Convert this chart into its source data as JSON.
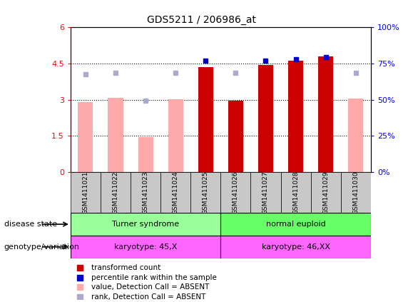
{
  "title": "GDS5211 / 206986_at",
  "samples": [
    "GSM1411021",
    "GSM1411022",
    "GSM1411023",
    "GSM1411024",
    "GSM1411025",
    "GSM1411026",
    "GSM1411027",
    "GSM1411028",
    "GSM1411029",
    "GSM1411030"
  ],
  "transformed_count": [
    null,
    null,
    null,
    null,
    4.35,
    2.95,
    4.45,
    4.6,
    4.8,
    null
  ],
  "percentile_rank": [
    null,
    null,
    null,
    null,
    4.6,
    null,
    4.6,
    4.67,
    4.77,
    null
  ],
  "value_absent": [
    2.9,
    3.08,
    1.45,
    3.02,
    null,
    null,
    null,
    null,
    null,
    3.05
  ],
  "rank_absent": [
    4.05,
    4.12,
    2.97,
    4.1,
    null,
    4.1,
    null,
    null,
    null,
    4.1
  ],
  "ylim_left": [
    0,
    6
  ],
  "yticks_left": [
    0,
    1.5,
    3.0,
    4.5,
    6.0
  ],
  "ytick_labels_left": [
    "0",
    "1.5",
    "3",
    "4.5",
    "6"
  ],
  "ytick_labels_right": [
    "0%",
    "25%",
    "50%",
    "75%",
    "100%"
  ],
  "yticks_right": [
    0,
    25,
    50,
    75,
    100
  ],
  "group1_label_disease": "Turner syndrome",
  "group2_label_disease": "normal euploid",
  "group1_label_geno": "karyotype: 45,X",
  "group2_label_geno": "karyotype: 46,XX",
  "disease_label": "disease state",
  "geno_label": "genotype/variation",
  "color_bar_present": "#cc0000",
  "color_bar_absent": "#ffaaaa",
  "color_dot_present": "#0000cc",
  "color_dot_absent": "#aaaacc",
  "color_group1_disease": "#99ff99",
  "color_group2_disease": "#66ff66",
  "color_group_geno": "#ff66ff",
  "bg_label": "#c8c8c8",
  "legend_items": [
    {
      "label": "transformed count",
      "color": "#cc0000"
    },
    {
      "label": "percentile rank within the sample",
      "color": "#0000cc"
    },
    {
      "label": "value, Detection Call = ABSENT",
      "color": "#ffaaaa"
    },
    {
      "label": "rank, Detection Call = ABSENT",
      "color": "#aaaacc"
    }
  ]
}
